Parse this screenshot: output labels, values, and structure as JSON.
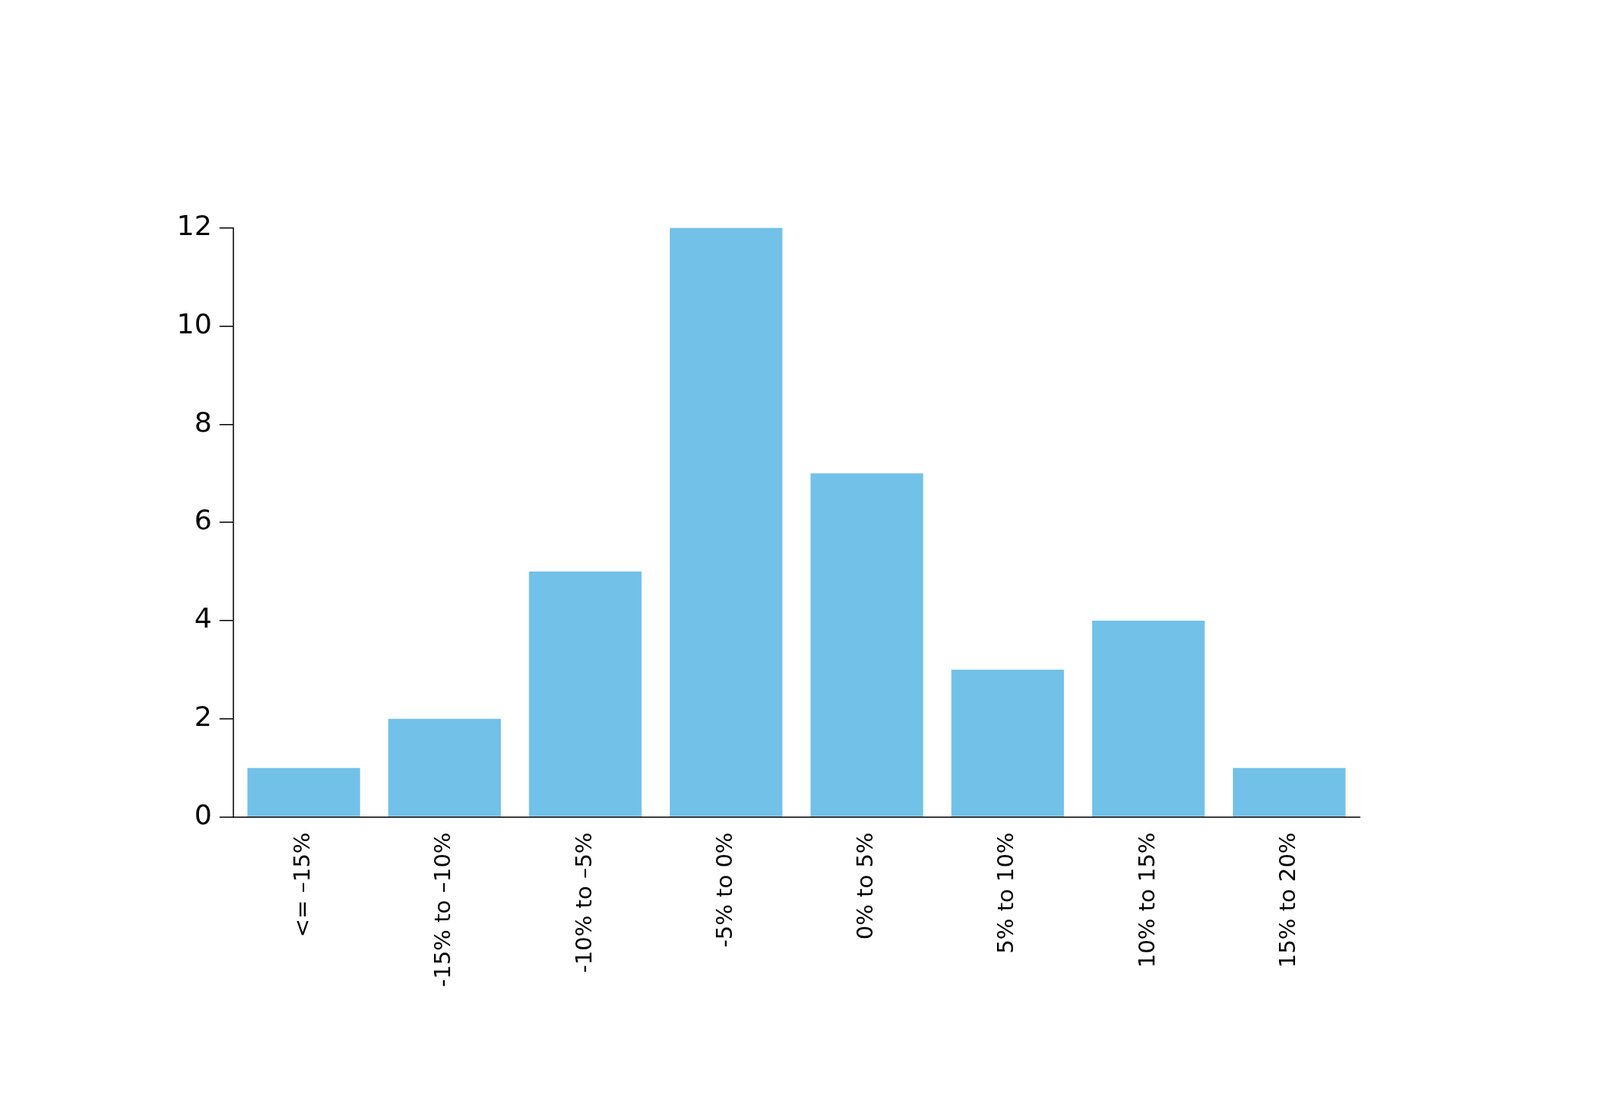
{
  "chart_data": {
    "type": "bar",
    "categories": [
      "<= –15%",
      "-15% to –10%",
      "-10% to –5%",
      "-5% to 0%",
      "0% to 5%",
      "5% to 10%",
      "10% to 15%",
      "15% to 20%"
    ],
    "values": [
      1,
      2,
      5,
      12,
      7,
      3,
      4,
      1
    ],
    "color": "#72c1e9",
    "ylim": [
      0,
      12
    ],
    "yticks": [
      0,
      2,
      4,
      6,
      8,
      10,
      12
    ],
    "grid": false
  }
}
